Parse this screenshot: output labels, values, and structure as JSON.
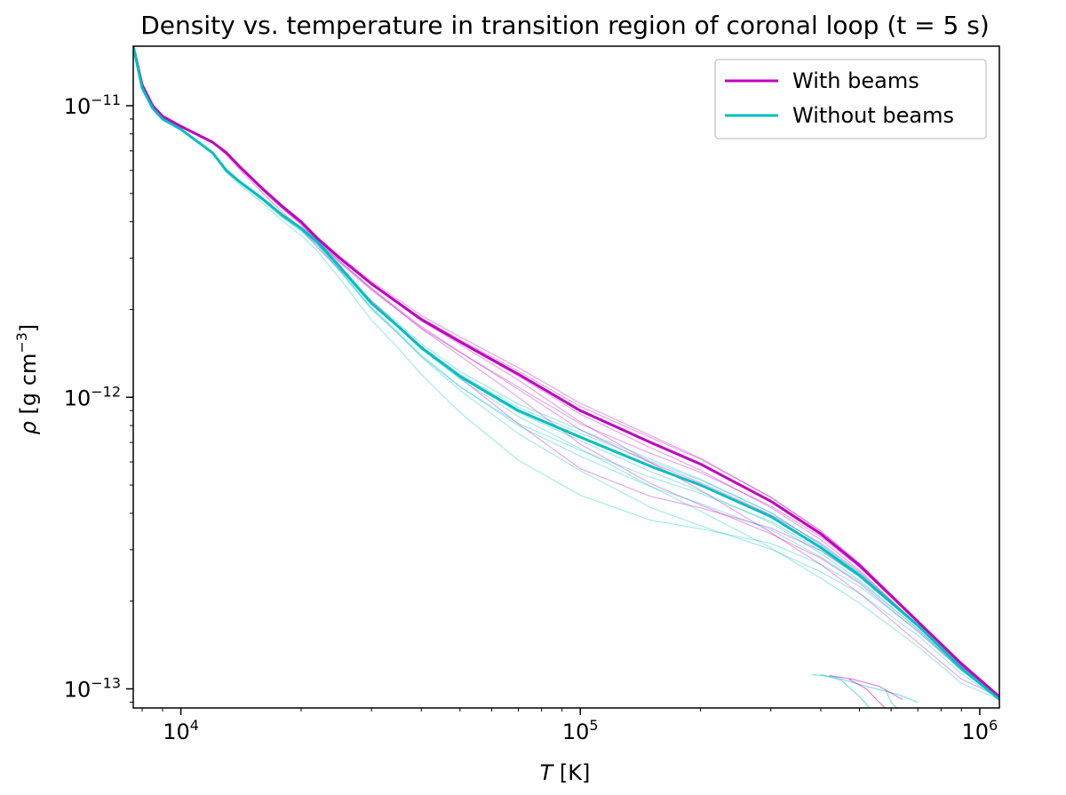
{
  "chart_data": {
    "type": "line",
    "title": "Density vs. temperature in transition region of coronal loop (t = 5 s)",
    "xlabel": {
      "symbol": "T",
      "unit": " [K]"
    },
    "ylabel": {
      "symbol": "ρ",
      "unit_prefix": " [g cm",
      "unit_exp": "−3",
      "unit_suffix": "]"
    },
    "xscale": "log",
    "yscale": "log",
    "xlim": [
      7600,
      1120000
    ],
    "ylim": [
      8.6e-14,
      1.6e-11
    ],
    "x_ticks": [
      {
        "value": 10000,
        "base": "10",
        "exp": "4"
      },
      {
        "value": 100000,
        "base": "10",
        "exp": "5"
      },
      {
        "value": 1000000,
        "base": "10",
        "exp": "6"
      }
    ],
    "y_ticks": [
      {
        "value": 1e-13,
        "base": "10",
        "exp": "−13"
      },
      {
        "value": 1e-12,
        "base": "10",
        "exp": "−12"
      },
      {
        "value": 1e-11,
        "base": "10",
        "exp": "−11"
      }
    ],
    "legend": {
      "position": "top-right",
      "entries": [
        {
          "label": "With beams",
          "color": "#bf00bf"
        },
        {
          "label": "Without beams",
          "color": "#00bfbf"
        }
      ]
    },
    "series": [
      {
        "name": "With beams",
        "color": "#bf00bf",
        "x": [
          7600,
          8000,
          8500,
          9000,
          10000,
          12000,
          13000,
          14000,
          16000,
          18000,
          20000,
          22000,
          25000,
          30000,
          40000,
          50000,
          70000,
          100000,
          150000,
          200000,
          300000,
          400000,
          500000,
          700000,
          900000,
          1120000
        ],
        "y": [
          1.6e-11,
          1.18e-11,
          1e-11,
          9.2e-12,
          8.5e-12,
          7.5e-12,
          6.9e-12,
          6.2e-12,
          5.2e-12,
          4.5e-12,
          4e-12,
          3.5e-12,
          3e-12,
          2.45e-12,
          1.85e-12,
          1.55e-12,
          1.2e-12,
          9e-13,
          7e-13,
          5.9e-13,
          4.4e-13,
          3.4e-13,
          2.65e-13,
          1.7e-13,
          1.22e-13,
          9.4e-14
        ]
      },
      {
        "name": "Without beams",
        "color": "#00bfbf",
        "x": [
          7600,
          8000,
          8500,
          9000,
          10000,
          12000,
          13000,
          14000,
          16000,
          18000,
          20000,
          22000,
          25000,
          30000,
          35000,
          40000,
          50000,
          70000,
          100000,
          150000,
          200000,
          300000,
          400000,
          500000,
          700000,
          900000,
          1120000
        ],
        "y": [
          1.6e-11,
          1.15e-11,
          9.8e-12,
          9e-12,
          8.3e-12,
          6.9e-12,
          6e-12,
          5.5e-12,
          4.8e-12,
          4.2e-12,
          3.8e-12,
          3.4e-12,
          2.8e-12,
          2.1e-12,
          1.75e-12,
          1.48e-12,
          1.18e-12,
          9e-13,
          7.3e-13,
          5.8e-13,
          5e-13,
          3.9e-13,
          3.05e-13,
          2.45e-13,
          1.65e-13,
          1.18e-13,
          9.2e-14
        ]
      }
    ]
  }
}
